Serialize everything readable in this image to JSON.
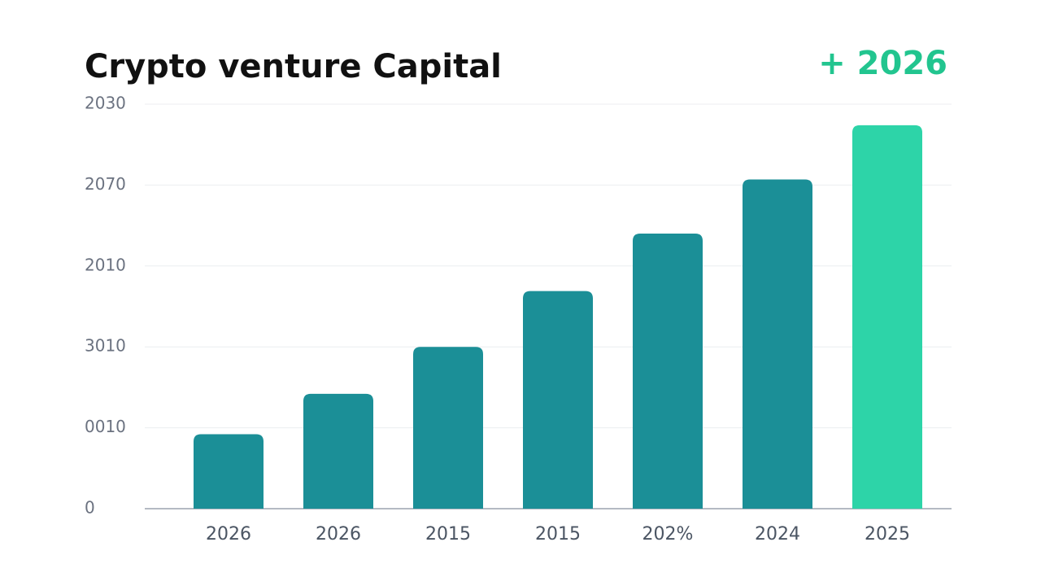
{
  "chart_data": {
    "type": "bar",
    "title": "Crypto venture Capital",
    "headline": "+ 2026",
    "categories": [
      "2026",
      "2026",
      "2015",
      "2015",
      "202%",
      "2024",
      "2025"
    ],
    "values": [
      0.92,
      1.42,
      2.0,
      2.69,
      3.4,
      4.07,
      4.74
    ],
    "colors": [
      "#1b8f97",
      "#1b8f97",
      "#1b8f97",
      "#1b8f97",
      "#1b8f97",
      "#1b8f97",
      "#2dd4a8"
    ],
    "ylim": [
      0,
      5
    ],
    "yticks": [
      0,
      {
        "value": 1,
        "label": "0010"
      },
      {
        "value": 2,
        "label": "3010"
      },
      {
        "value": 3,
        "label": "2010"
      },
      {
        "value": 4,
        "label": "2070"
      },
      {
        "value": 5,
        "label": "2030"
      }
    ],
    "grid": true
  }
}
